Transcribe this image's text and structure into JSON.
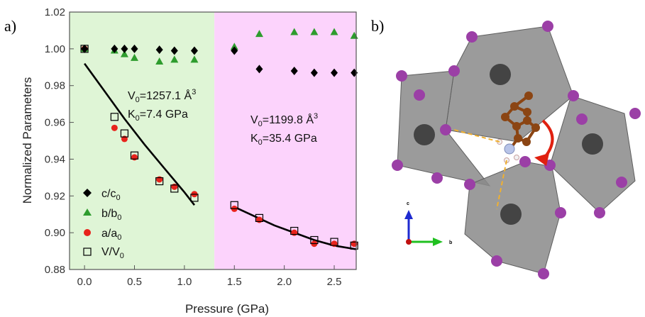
{
  "panels": {
    "a_label": "a)",
    "b_label": "b)"
  },
  "chart_data": {
    "type": "scatter",
    "title": "",
    "xlabel": "Pressure (GPa)",
    "ylabel": "Normalized Parameters",
    "xlim": [
      -0.15,
      2.72
    ],
    "ylim": [
      0.88,
      1.02
    ],
    "xticks": [
      0.0,
      0.5,
      1.0,
      1.5,
      2.0,
      2.5
    ],
    "xtick_labels": [
      "0.0",
      "0.5",
      "1.0",
      "1.5",
      "2.0",
      "2.5"
    ],
    "yticks": [
      0.88,
      0.9,
      0.92,
      0.94,
      0.96,
      0.98,
      1.0,
      1.02
    ],
    "ytick_labels": [
      "0.88",
      "0.90",
      "0.92",
      "0.94",
      "0.96",
      "0.98",
      "1.00",
      "1.02"
    ],
    "grid": false,
    "legend_position": "bottom-left",
    "phase_regions": [
      {
        "x_start": -0.15,
        "x_end": 1.3,
        "color": "#dff5d6"
      },
      {
        "x_start": 1.3,
        "x_end": 2.72,
        "color": "#fcd3fc"
      }
    ],
    "series": [
      {
        "name": "c/c",
        "name_sub": "0",
        "marker": "diamond",
        "color": "#000000",
        "x": [
          0.0,
          0.3,
          0.4,
          0.5,
          0.75,
          0.9,
          1.1,
          1.5,
          1.75,
          2.1,
          2.3,
          2.5,
          2.7
        ],
        "y": [
          1.0,
          1.0,
          1.0,
          1.0,
          0.9995,
          0.999,
          0.999,
          0.999,
          0.989,
          0.988,
          0.987,
          0.987,
          0.987
        ]
      },
      {
        "name": "b/b",
        "name_sub": "0",
        "marker": "triangle",
        "color": "#2e9c2e",
        "x": [
          0.0,
          0.3,
          0.4,
          0.5,
          0.75,
          0.9,
          1.1,
          1.5,
          1.75,
          2.1,
          2.3,
          2.5,
          2.7
        ],
        "y": [
          1.0,
          0.999,
          0.997,
          0.995,
          0.993,
          0.994,
          0.994,
          1.001,
          1.008,
          1.009,
          1.009,
          1.009,
          1.007
        ]
      },
      {
        "name": "a/a",
        "name_sub": "0",
        "marker": "circle",
        "color": "#e8231c",
        "x": [
          0.0,
          0.3,
          0.4,
          0.5,
          0.75,
          0.9,
          1.1,
          1.5,
          1.75,
          2.1,
          2.3,
          2.5,
          2.7
        ],
        "y": [
          1.0,
          0.957,
          0.951,
          0.941,
          0.929,
          0.925,
          0.921,
          0.913,
          0.907,
          0.9,
          0.894,
          0.894,
          0.894
        ]
      },
      {
        "name": "V/V",
        "name_sub": "0",
        "marker": "square-open",
        "color": "#000000",
        "x": [
          0.0,
          0.3,
          0.4,
          0.5,
          0.75,
          0.9,
          1.1,
          1.5,
          1.75,
          2.1,
          2.3,
          2.5,
          2.7
        ],
        "y": [
          1.0,
          0.963,
          0.954,
          0.942,
          0.928,
          0.924,
          0.919,
          0.915,
          0.908,
          0.901,
          0.896,
          0.895,
          0.893
        ]
      }
    ],
    "fits": [
      {
        "x": [
          0.0,
          0.2,
          0.4,
          0.6,
          0.8,
          1.0,
          1.1
        ],
        "y": [
          0.992,
          0.977,
          0.962,
          0.948,
          0.935,
          0.922,
          0.915
        ]
      },
      {
        "x": [
          1.5,
          1.7,
          1.9,
          2.1,
          2.3,
          2.5,
          2.72
        ],
        "y": [
          0.914,
          0.909,
          0.904,
          0.9,
          0.896,
          0.893,
          0.891
        ]
      }
    ],
    "annotations": [
      {
        "line1_pre": "V",
        "line1_sub": "0",
        "line1_post": "=1257.1 Å",
        "line1_sup": "3",
        "line2_pre": "K",
        "line2_sub": "0",
        "line2_post": "=7.4 GPa"
      },
      {
        "line1_pre": "V",
        "line1_sub": "0",
        "line1_post": "=1199.8 Å",
        "line1_sup": "3",
        "line2_pre": "K",
        "line2_sub": "0",
        "line2_post": "=35.4 GPa"
      }
    ]
  },
  "structure": {
    "axis_c_label": "c",
    "axis_b_label": "b",
    "colors": {
      "octahedron": "#8a8a8a",
      "octahedron_edge": "#5e5e5e",
      "iodide": "#9b3fa6",
      "metal": "#444444",
      "carbon": "#8b4513",
      "hbond": "#f0b030",
      "arrow": "#e02010",
      "axis_c": "#1e2ad0",
      "axis_b": "#20c020"
    }
  }
}
